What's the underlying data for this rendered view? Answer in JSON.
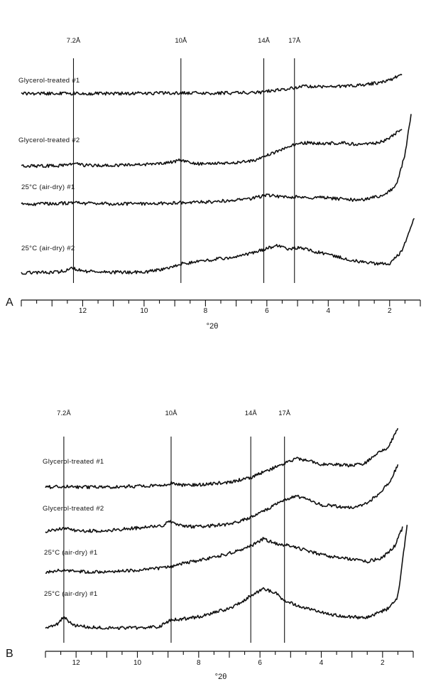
{
  "chart_data": [
    {
      "panel": "A",
      "type": "line",
      "xlabel": "°2θ",
      "xlim": [
        14,
        1
      ],
      "x_ticks": [
        12,
        10,
        8,
        6,
        4,
        2
      ],
      "reference_lines": [
        {
          "label": "7.2Å",
          "x": 12.3
        },
        {
          "label": "10Å",
          "x": 8.8
        },
        {
          "label": "14Å",
          "x": 6.1
        },
        {
          "label": "17Å",
          "x": 5.1
        }
      ],
      "series": [
        {
          "name": "Glycerol-treated #1",
          "points": [
            [
              14,
              0.02
            ],
            [
              12.3,
              0.03
            ],
            [
              11,
              0.02
            ],
            [
              10,
              0.04
            ],
            [
              8.8,
              0.06
            ],
            [
              8,
              0.05
            ],
            [
              7,
              0.06
            ],
            [
              6.2,
              0.1
            ],
            [
              5.4,
              0.3
            ],
            [
              4.8,
              0.48
            ],
            [
              4,
              0.46
            ],
            [
              3,
              0.55
            ],
            [
              2.4,
              0.7
            ],
            [
              1.9,
              0.95
            ],
            [
              1.6,
              1.25
            ]
          ]
        },
        {
          "name": "Glycerol-treated #2",
          "points": [
            [
              14,
              0.02
            ],
            [
              12.6,
              0.05
            ],
            [
              12.3,
              0.2
            ],
            [
              12.0,
              0.08
            ],
            [
              11,
              0.06
            ],
            [
              10,
              0.13
            ],
            [
              9.2,
              0.22
            ],
            [
              8.8,
              0.4
            ],
            [
              8.5,
              0.22
            ],
            [
              8,
              0.14
            ],
            [
              7,
              0.25
            ],
            [
              6.3,
              0.42
            ],
            [
              5.8,
              0.85
            ],
            [
              5.3,
              1.3
            ],
            [
              4.8,
              1.52
            ],
            [
              4.2,
              1.45
            ],
            [
              3.5,
              1.5
            ],
            [
              3,
              1.38
            ],
            [
              2.6,
              1.45
            ],
            [
              2.2,
              1.6
            ],
            [
              1.9,
              1.95
            ],
            [
              1.6,
              2.4
            ]
          ]
        },
        {
          "name": "25°C (air-dry) #1",
          "points": [
            [
              14,
              0.02
            ],
            [
              12.3,
              0.08
            ],
            [
              11,
              0.04
            ],
            [
              10,
              0.05
            ],
            [
              9,
              0.08
            ],
            [
              8,
              0.12
            ],
            [
              7,
              0.2
            ],
            [
              6.5,
              0.28
            ],
            [
              6.0,
              0.42
            ],
            [
              5.5,
              0.34
            ],
            [
              5,
              0.35
            ],
            [
              4,
              0.3
            ],
            [
              3,
              0.2
            ],
            [
              2.2,
              0.4
            ],
            [
              1.8,
              0.8
            ],
            [
              1.5,
              2.2
            ],
            [
              1.3,
              4.0
            ]
          ]
        },
        {
          "name": "25°C (air-dry) #2",
          "points": [
            [
              14,
              0.02
            ],
            [
              12.8,
              0.05
            ],
            [
              12.3,
              0.3
            ],
            [
              12.0,
              0.1
            ],
            [
              11,
              0.05
            ],
            [
              10,
              0.05
            ],
            [
              9.2,
              0.3
            ],
            [
              8.8,
              0.6
            ],
            [
              8.3,
              0.7
            ],
            [
              7.8,
              0.85
            ],
            [
              7.2,
              1.0
            ],
            [
              6.8,
              1.1
            ],
            [
              6.2,
              1.45
            ],
            [
              5.7,
              1.75
            ],
            [
              5.3,
              1.55
            ],
            [
              4.9,
              1.65
            ],
            [
              4.5,
              1.4
            ],
            [
              4,
              1.2
            ],
            [
              3.5,
              0.95
            ],
            [
              3,
              0.75
            ],
            [
              2.5,
              0.6
            ],
            [
              2.0,
              0.62
            ],
            [
              1.6,
              1.4
            ],
            [
              1.2,
              3.5
            ]
          ]
        }
      ]
    },
    {
      "panel": "B",
      "type": "line",
      "xlabel": "°2θ",
      "xlim": [
        13,
        1
      ],
      "x_ticks": [
        12,
        10,
        8,
        6,
        4,
        2
      ],
      "reference_lines": [
        {
          "label": "7.2Å",
          "x": 12.4
        },
        {
          "label": "10Å",
          "x": 8.9
        },
        {
          "label": "14Å",
          "x": 6.3
        },
        {
          "label": "17Å",
          "x": 5.2
        }
      ],
      "series": [
        {
          "name": "Glycerol-treated #1",
          "points": [
            [
              13,
              0.02
            ],
            [
              12.4,
              0.06
            ],
            [
              12.0,
              0.03
            ],
            [
              11,
              0.02
            ],
            [
              10,
              0.06
            ],
            [
              9.2,
              0.1
            ],
            [
              8.9,
              0.18
            ],
            [
              8.5,
              0.1
            ],
            [
              8,
              0.12
            ],
            [
              7,
              0.22
            ],
            [
              6.3,
              0.4
            ],
            [
              5.8,
              0.65
            ],
            [
              5.2,
              0.95
            ],
            [
              4.8,
              1.15
            ],
            [
              4.4,
              1.05
            ],
            [
              4,
              0.92
            ],
            [
              3.5,
              0.9
            ],
            [
              3,
              0.86
            ],
            [
              2.6,
              0.95
            ],
            [
              2.2,
              1.3
            ],
            [
              1.8,
              1.6
            ],
            [
              1.5,
              2.3
            ]
          ]
        },
        {
          "name": "Glycerol-treated #2",
          "points": [
            [
              13,
              0.02
            ],
            [
              12.4,
              0.15
            ],
            [
              12.0,
              0.04
            ],
            [
              11,
              0.05
            ],
            [
              10,
              0.15
            ],
            [
              9.2,
              0.25
            ],
            [
              8.9,
              0.4
            ],
            [
              8.5,
              0.22
            ],
            [
              8,
              0.2
            ],
            [
              7,
              0.3
            ],
            [
              6.3,
              0.55
            ],
            [
              5.8,
              0.85
            ],
            [
              5.2,
              1.25
            ],
            [
              4.8,
              1.4
            ],
            [
              4.4,
              1.25
            ],
            [
              4,
              1.05
            ],
            [
              3.5,
              1.0
            ],
            [
              3,
              0.95
            ],
            [
              2.6,
              1.05
            ],
            [
              2.2,
              1.4
            ],
            [
              1.8,
              1.9
            ],
            [
              1.5,
              2.6
            ]
          ]
        },
        {
          "name": "25°C (air-dry) #1",
          "points": [
            [
              13,
              0.02
            ],
            [
              12.4,
              0.12
            ],
            [
              12.0,
              0.05
            ],
            [
              11,
              0.04
            ],
            [
              10,
              0.1
            ],
            [
              9,
              0.2
            ],
            [
              8.5,
              0.35
            ],
            [
              7.5,
              0.55
            ],
            [
              7,
              0.7
            ],
            [
              6.3,
              0.95
            ],
            [
              5.9,
              1.2
            ],
            [
              5.5,
              1.05
            ],
            [
              5,
              0.95
            ],
            [
              4.5,
              0.8
            ],
            [
              4,
              0.65
            ],
            [
              3.5,
              0.55
            ],
            [
              3,
              0.48
            ],
            [
              2.5,
              0.4
            ],
            [
              2,
              0.55
            ],
            [
              1.6,
              0.95
            ],
            [
              1.35,
              1.6
            ]
          ]
        },
        {
          "name": "25°C (air-dry) #1",
          "points": [
            [
              13,
              0.05
            ],
            [
              12.6,
              0.2
            ],
            [
              12.4,
              0.55
            ],
            [
              12.1,
              0.15
            ],
            [
              11.5,
              0.05
            ],
            [
              11,
              0.03
            ],
            [
              10,
              0.03
            ],
            [
              9.3,
              0.08
            ],
            [
              8.9,
              0.4
            ],
            [
              8.5,
              0.45
            ],
            [
              8,
              0.55
            ],
            [
              7.5,
              0.75
            ],
            [
              7,
              0.95
            ],
            [
              6.6,
              1.25
            ],
            [
              6.3,
              1.55
            ],
            [
              5.9,
              1.85
            ],
            [
              5.5,
              1.7
            ],
            [
              5.2,
              1.3
            ],
            [
              4.8,
              1.1
            ],
            [
              4.4,
              0.9
            ],
            [
              4,
              0.75
            ],
            [
              3.5,
              0.62
            ],
            [
              3,
              0.55
            ],
            [
              2.6,
              0.5
            ],
            [
              2.2,
              0.7
            ],
            [
              1.8,
              0.95
            ],
            [
              1.5,
              1.5
            ],
            [
              1.2,
              4.8
            ]
          ]
        }
      ]
    }
  ],
  "panels": [
    {
      "letter": "A"
    },
    {
      "letter": "B"
    }
  ]
}
